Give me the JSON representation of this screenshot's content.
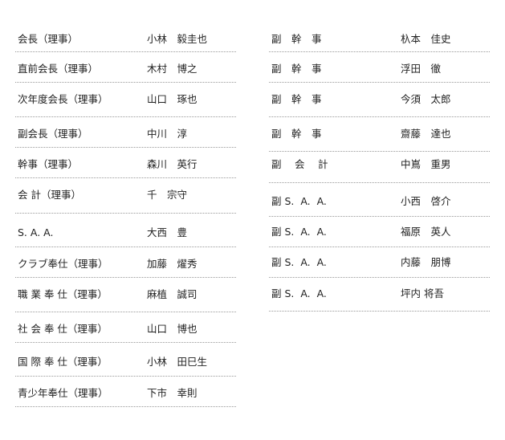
{
  "left": [
    {
      "role": "会長（理事）",
      "name": "小林　毅圭也"
    },
    {
      "role": "直前会長（理事）",
      "name": "木村　博之"
    },
    {
      "role": "次年度会長（理事）",
      "name": "山口　琢也"
    },
    {
      "role": "副会長（理事）",
      "name": "中川　淳"
    },
    {
      "role": "幹事（理事）",
      "name": "森川　英行"
    },
    {
      "role": "会 計（理事）",
      "name": "千　宗守"
    },
    {
      "role": "S. A. A.",
      "name": "大西　豊"
    },
    {
      "role": "クラブ奉仕（理事）",
      "name": "加藤　燿秀"
    },
    {
      "role": "職 業 奉 仕（理事）",
      "name": "麻植　誠司"
    },
    {
      "role": "社 会 奉 仕（理事）",
      "name": "山口　博也"
    },
    {
      "role": "国 際 奉 仕（理事）",
      "name": "小林　田巳生"
    },
    {
      "role": "青少年奉仕（理事）",
      "name": "下市　幸則"
    }
  ],
  "right": [
    {
      "role": "副　幹　事",
      "name": "杁本　佳史"
    },
    {
      "role": "副　幹　事",
      "name": "浮田　徹"
    },
    {
      "role": "副　幹　事",
      "name": "今須　太郎"
    },
    {
      "role": "副　幹　事",
      "name": "齋藤　達也"
    },
    {
      "role": "副　 会　 計",
      "name": "中嶌　重男"
    },
    {
      "role": "副 S.  A.  A.",
      "name": "小西　啓介"
    },
    {
      "role": "副 S.  A.  A.",
      "name": "福原　英人"
    },
    {
      "role": "副 S.  A.  A.",
      "name": "内藤　朋博"
    },
    {
      "role": "副 S.  A.  A.",
      "name": "坪内 将吾"
    }
  ]
}
